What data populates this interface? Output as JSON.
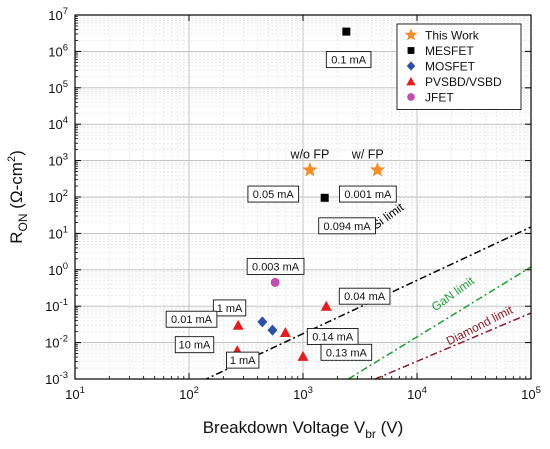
{
  "chart_data": {
    "type": "scatter",
    "x_scale": "log",
    "y_scale": "log",
    "xlim": [
      10,
      100000
    ],
    "ylim": [
      0.001,
      10000000
    ],
    "grid": true,
    "legend_position": "top-right",
    "xlabel": {
      "main": "Breakdown Voltage V",
      "sub": "br",
      "unit": " (V)"
    },
    "ylabel": {
      "main": "R",
      "sub": "ON",
      "unit": " (Ω-cm",
      "sup": "2",
      "close": ")"
    },
    "x_ticks": [
      {
        "v": 10,
        "base": "10",
        "exp": "1"
      },
      {
        "v": 100,
        "base": "10",
        "exp": "2"
      },
      {
        "v": 1000,
        "base": "10",
        "exp": "3"
      },
      {
        "v": 10000,
        "base": "10",
        "exp": "4"
      },
      {
        "v": 100000,
        "base": "10",
        "exp": "5"
      }
    ],
    "y_ticks": [
      {
        "v": 0.001,
        "base": "10",
        "exp": "-3"
      },
      {
        "v": 0.01,
        "base": "10",
        "exp": "-2"
      },
      {
        "v": 0.1,
        "base": "10",
        "exp": "-1"
      },
      {
        "v": 1,
        "base": "10",
        "exp": "0"
      },
      {
        "v": 10,
        "base": "10",
        "exp": "1"
      },
      {
        "v": 100,
        "base": "10",
        "exp": "2"
      },
      {
        "v": 1000,
        "base": "10",
        "exp": "3"
      },
      {
        "v": 10000,
        "base": "10",
        "exp": "4"
      },
      {
        "v": 100000,
        "base": "10",
        "exp": "5"
      },
      {
        "v": 1000000,
        "base": "10",
        "exp": "6"
      },
      {
        "v": 10000000,
        "base": "10",
        "exp": "7"
      }
    ],
    "series": [
      {
        "name": "This Work",
        "marker": "star",
        "color": "#f28e2b",
        "points": [
          {
            "x": 1150,
            "y": 550,
            "label": "0.05 mA"
          },
          {
            "x": 4500,
            "y": 550,
            "label": "0.001 mA"
          }
        ]
      },
      {
        "name": "MESFET",
        "marker": "square",
        "color": "#000000",
        "points": [
          {
            "x": 2400,
            "y": 3500000,
            "label": "0.1 mA"
          },
          {
            "x": 1550,
            "y": 95,
            "label": "0.094 mA"
          }
        ]
      },
      {
        "name": "MOSFET",
        "marker": "diamond",
        "color": "#2d4fa8",
        "points": [
          {
            "x": 440,
            "y": 0.037,
            "label": "1 mA"
          },
          {
            "x": 540,
            "y": 0.022,
            "label": "1 mA"
          }
        ]
      },
      {
        "name": "PVSBD/VSBD",
        "marker": "triangle",
        "color": "#e02020",
        "points": [
          {
            "x": 270,
            "y": 0.03,
            "label": "0.01 mA"
          },
          {
            "x": 265,
            "y": 0.006,
            "label": "10 mA"
          },
          {
            "x": 700,
            "y": 0.019,
            "label": "0.14 mA"
          },
          {
            "x": 1600,
            "y": 0.1,
            "label": "0.04 mA"
          },
          {
            "x": 1000,
            "y": 0.0042,
            "label": "0.13 mA"
          }
        ]
      },
      {
        "name": "JFET",
        "marker": "circle",
        "color": "#c14fb0",
        "points": [
          {
            "x": 570,
            "y": 0.45,
            "label": "0.003 mA"
          }
        ]
      }
    ],
    "limit_lines": [
      {
        "name": "Si limit",
        "color": "#000000",
        "p1": [
          100,
          0.0006
        ],
        "p2": [
          100000,
          15
        ]
      },
      {
        "name": "GaN limit",
        "color": "#1f9e3a",
        "p1": [
          2500,
          0.001
        ],
        "p2": [
          100000,
          1.2
        ]
      },
      {
        "name": "Diamond limit",
        "color": "#8a1a2a",
        "p1": [
          4300,
          0.001
        ],
        "p2": [
          100000,
          0.065
        ]
      }
    ],
    "annotations": [
      {
        "text": "w/o FP",
        "x": 1150,
        "y": 1150
      },
      {
        "text": "w/ FP",
        "x": 3700,
        "y": 1150
      }
    ]
  }
}
